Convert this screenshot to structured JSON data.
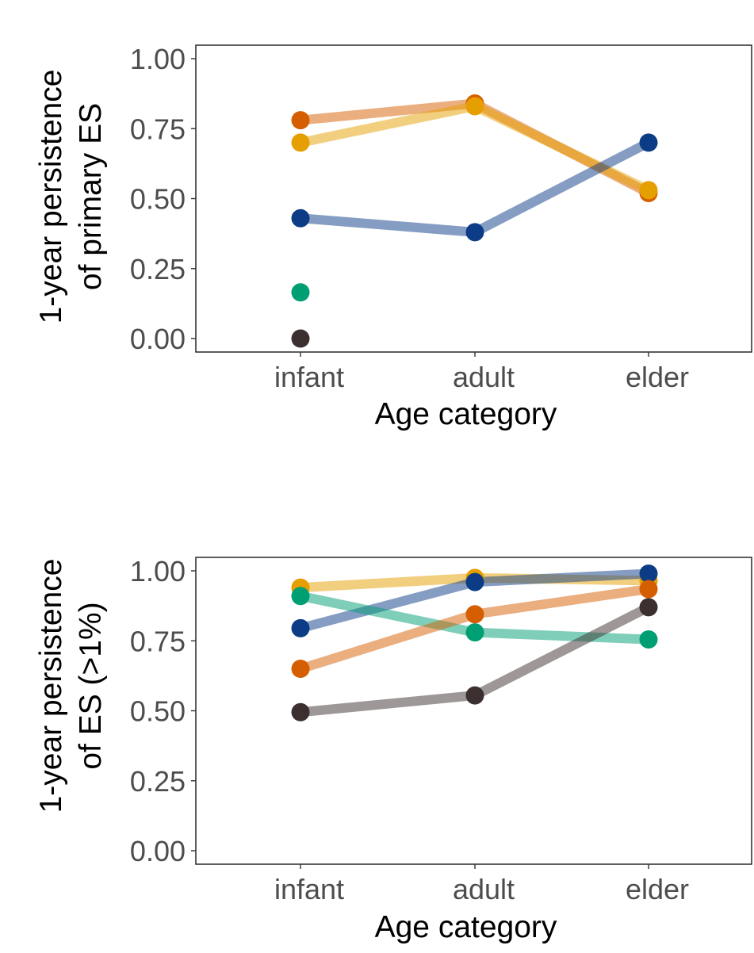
{
  "chart_data": [
    {
      "type": "line",
      "xlabel": "Age category",
      "ylabel_lines": [
        "1-year persistence",
        "of primary ES"
      ],
      "categories": [
        "infant",
        "adult",
        "elder"
      ],
      "ylim": [
        0,
        1
      ],
      "yticks": [
        "0.00",
        "0.25",
        "0.50",
        "0.75",
        "1.00"
      ],
      "grid": false,
      "series": [
        {
          "name": "orange",
          "color": "#D55E00",
          "values": [
            0.78,
            0.84,
            0.52
          ]
        },
        {
          "name": "yellow",
          "color": "#E69F00",
          "values": [
            0.7,
            0.83,
            0.53
          ]
        },
        {
          "name": "blue",
          "color": "#0C3C85",
          "values": [
            0.43,
            0.38,
            0.7
          ]
        },
        {
          "name": "green",
          "color": "#009E73",
          "values": [
            0.165,
            null,
            null
          ]
        },
        {
          "name": "dark",
          "color": "#3B2F2F",
          "values": [
            0.0,
            null,
            null
          ]
        }
      ]
    },
    {
      "type": "line",
      "xlabel": "Age category",
      "ylabel_lines": [
        "1-year persistence",
        "of ES (>1%)"
      ],
      "categories": [
        "infant",
        "adult",
        "elder"
      ],
      "ylim": [
        0,
        1
      ],
      "yticks": [
        "0.00",
        "0.25",
        "0.50",
        "0.75",
        "1.00"
      ],
      "grid": false,
      "series": [
        {
          "name": "yellow",
          "color": "#E69F00",
          "values": [
            0.94,
            0.975,
            0.965
          ]
        },
        {
          "name": "blue",
          "color": "#0C3C85",
          "values": [
            0.795,
            0.96,
            0.99
          ]
        },
        {
          "name": "green",
          "color": "#009E73",
          "values": [
            0.91,
            0.78,
            0.755
          ]
        },
        {
          "name": "orange",
          "color": "#D55E00",
          "values": [
            0.65,
            0.845,
            0.935
          ]
        },
        {
          "name": "dark",
          "color": "#3B2F2F",
          "values": [
            0.495,
            0.555,
            0.87
          ]
        }
      ]
    }
  ]
}
